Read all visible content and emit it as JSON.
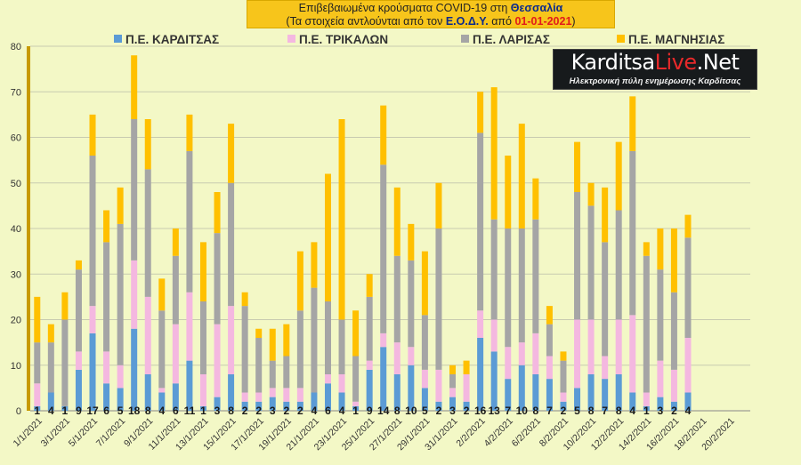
{
  "title": {
    "line1_pre": "Επιβεβαιωμένα κρούσματα COVID-19 στη ",
    "line1_region": "Θεσσαλία",
    "line2_pre": "(Τα στοιχεία αντλούνται από τον ",
    "line2_source": "Ε.Ο.Δ.Υ.",
    "line2_mid": " από ",
    "line2_date": "01-01-2021",
    "line2_post": ")"
  },
  "logo": {
    "brand_a": "Karditsa",
    "brand_b": "Live",
    "brand_c": ".Net",
    "tagline": "Ηλεκτρονική πύλη ενημέρωσης Καρδίτσας"
  },
  "colors": {
    "karditsa": "#5b9bd5",
    "trikala": "#f4b8e0",
    "larisa": "#a5a5a5",
    "magnisia": "#ffc000",
    "axis_left": "#c79a00"
  },
  "chart_data": {
    "type": "bar",
    "stacked": true,
    "ylim": [
      0,
      80
    ],
    "yticks": [
      0,
      10,
      20,
      30,
      40,
      50,
      60,
      70,
      80
    ],
    "grid": true,
    "legend": "top",
    "x_tick_labels": [
      "1/1/2021",
      "3/1/2021",
      "5/1/2021",
      "7/1/2021",
      "9/1/2021",
      "11/1/2021",
      "13/1/2021",
      "15/1/2021",
      "17/1/2021",
      "19/1/2021",
      "21/1/2021",
      "23/1/2021",
      "25/1/2021",
      "27/1/2021",
      "29/1/2021",
      "31/1/2021",
      "2/2/2021",
      "4/2/2021",
      "6/2/2021",
      "8/2/2021",
      "10/2/2021",
      "12/2/2021",
      "14/2/2021",
      "16/2/2021",
      "18/2/2021",
      "20/2/2021"
    ],
    "n_slots": 52,
    "categories": [
      "1/1/2021",
      "2/1/2021",
      "3/1/2021",
      "4/1/2021",
      "5/1/2021",
      "6/1/2021",
      "7/1/2021",
      "8/1/2021",
      "9/1/2021",
      "10/1/2021",
      "11/1/2021",
      "12/1/2021",
      "13/1/2021",
      "14/1/2021",
      "15/1/2021",
      "16/1/2021",
      "17/1/2021",
      "18/1/2021",
      "19/1/2021",
      "20/1/2021",
      "21/1/2021",
      "22/1/2021",
      "23/1/2021",
      "24/1/2021",
      "25/1/2021",
      "26/1/2021",
      "27/1/2021",
      "28/1/2021",
      "29/1/2021",
      "30/1/2021",
      "31/1/2021",
      "1/2/2021",
      "2/2/2021",
      "3/2/2021",
      "4/2/2021",
      "5/2/2021",
      "6/2/2021",
      "7/2/2021",
      "8/2/2021",
      "9/2/2021",
      "10/2/2021",
      "11/2/2021",
      "12/2/2021",
      "13/2/2021",
      "14/2/2021",
      "15/2/2021",
      "16/2/2021",
      "17/2/2021"
    ],
    "series": [
      {
        "name": "Π.Ε. ΚΑΡΔΙΤΣΑΣ",
        "values": [
          1,
          4,
          1,
          9,
          17,
          6,
          5,
          18,
          8,
          4,
          6,
          11,
          1,
          3,
          8,
          2,
          2,
          3,
          2,
          2,
          4,
          6,
          4,
          1,
          9,
          14,
          8,
          10,
          5,
          2,
          3,
          2,
          16,
          13,
          7,
          10,
          8,
          7,
          2,
          5,
          8,
          7,
          8,
          4,
          1,
          3,
          2,
          4
        ]
      },
      {
        "name": "Π.Ε. ΤΡΙΚΑΛΩΝ",
        "values": [
          5,
          0,
          0,
          4,
          6,
          7,
          5,
          15,
          17,
          1,
          13,
          15,
          7,
          16,
          15,
          2,
          2,
          2,
          3,
          3,
          0,
          2,
          4,
          1,
          2,
          3,
          7,
          4,
          4,
          7,
          2,
          6,
          6,
          7,
          7,
          5,
          9,
          5,
          2,
          15,
          12,
          5,
          12,
          17,
          3,
          8,
          7,
          12
        ]
      },
      {
        "name": "Π.Ε. ΛΑΡΙΣΑΣ",
        "values": [
          9,
          11,
          19,
          18,
          33,
          24,
          31,
          31,
          28,
          17,
          15,
          31,
          16,
          20,
          27,
          19,
          12,
          6,
          7,
          17,
          23,
          16,
          12,
          10,
          14,
          37,
          19,
          19,
          12,
          31,
          3,
          0,
          39,
          22,
          26,
          25,
          25,
          7,
          7,
          28,
          25,
          25,
          24,
          36,
          30,
          20,
          17,
          22
        ]
      },
      {
        "name": "Π.Ε. ΜΑΓΝΗΣΙΑΣ",
        "values": [
          10,
          4,
          6,
          2,
          9,
          7,
          8,
          14,
          11,
          7,
          6,
          8,
          13,
          9,
          13,
          3,
          2,
          7,
          7,
          13,
          10,
          28,
          44,
          10,
          5,
          13,
          15,
          8,
          14,
          10,
          2,
          3,
          9,
          29,
          16,
          23,
          9,
          4,
          2,
          11,
          5,
          12,
          15,
          12,
          3,
          9,
          14,
          5
        ]
      }
    ]
  }
}
